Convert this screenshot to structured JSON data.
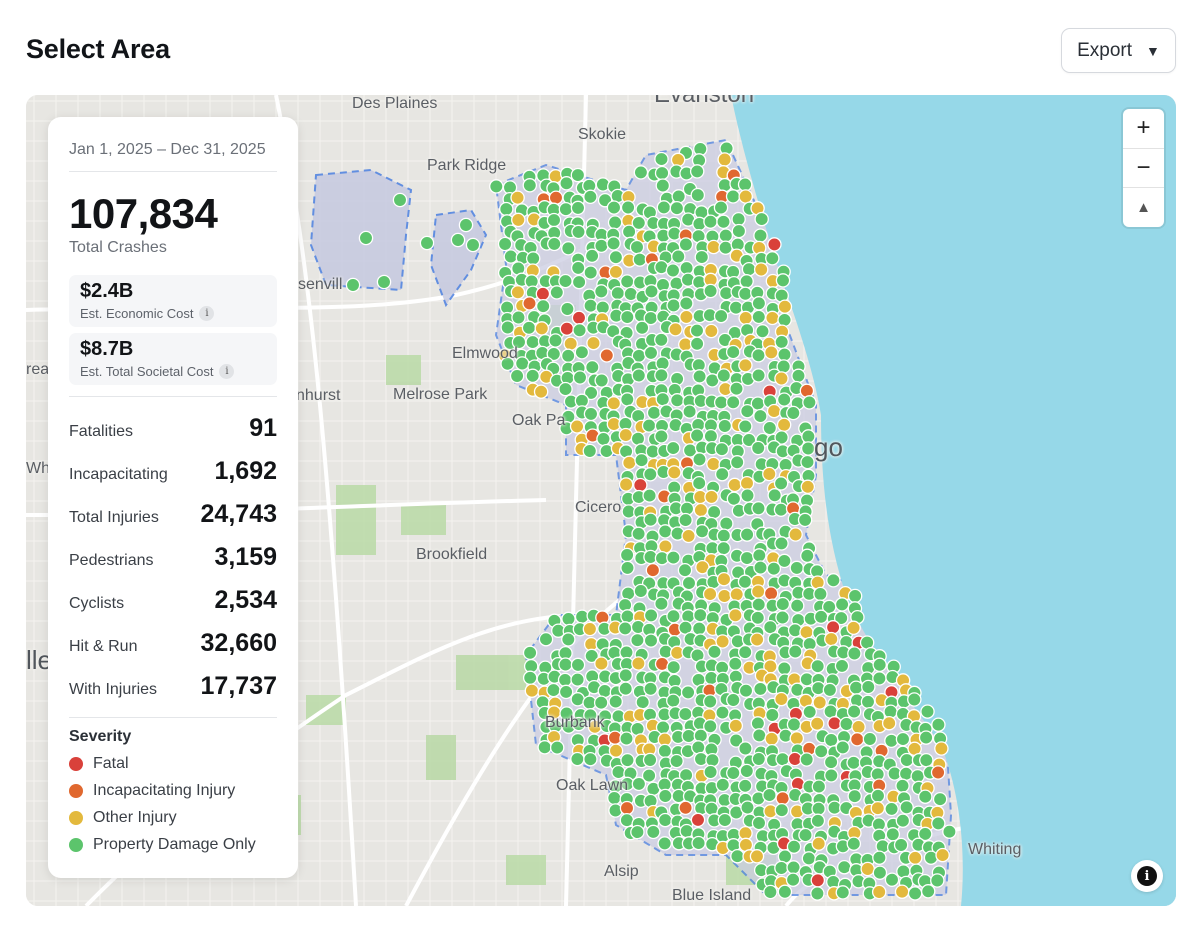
{
  "header": {
    "title": "Select Area",
    "export_label": "Export",
    "export_caret": "▼"
  },
  "map": {
    "labels": {
      "evanston": "Evanston",
      "des_plaines": "Des Plaines",
      "skokie": "Skokie",
      "park_ridge": "Park Ridge",
      "rosemont": "senvill",
      "elmwood": "Elmwood",
      "melrose_park": "Melrose Park",
      "elmhurst": "nhurst",
      "oak_park": "Oak Pa",
      "chicago": "go",
      "cicero": "Cicero",
      "brookfield": "Brookfield",
      "burbank": "Burbank",
      "oak_lawn": "Oak Lawn",
      "alsip": "Alsip",
      "blue_island": "Blue Island",
      "whiting": "Whiting",
      "west_edge_1": "Whe",
      "west_edge_2": "lle",
      "west_edge_3": "rea"
    },
    "zoom_in": "+",
    "zoom_out": "−",
    "reset_north": "▲",
    "info": "i",
    "colors": {
      "water": "#96d8e8",
      "land": "#e7e6e2",
      "park": "#b9d9a6",
      "area_outline": "#4a7fe0",
      "area_fill": "#c9cde3"
    }
  },
  "panel": {
    "date_range": "Jan 1, 2025 – Dec 31, 2025",
    "total_crashes": "107,834",
    "total_crashes_label": "Total Crashes",
    "economic_cost": "$2.4B",
    "economic_cost_label": "Est. Economic Cost",
    "societal_cost": "$8.7B",
    "societal_cost_label": "Est. Total Societal Cost",
    "info_glyph": "i",
    "stats": [
      {
        "label": "Fatalities",
        "value": "91"
      },
      {
        "label": "Incapacitating",
        "value": "1,692"
      },
      {
        "label": "Total Injuries",
        "value": "24,743"
      },
      {
        "label": "Pedestrians",
        "value": "3,159"
      },
      {
        "label": "Cyclists",
        "value": "2,534"
      },
      {
        "label": "Hit & Run",
        "value": "32,660"
      },
      {
        "label": "With Injuries",
        "value": "17,737"
      }
    ],
    "severity_title": "Severity",
    "severity": [
      {
        "label": "Fatal",
        "color": "#d9413a"
      },
      {
        "label": "Incapacitating Injury",
        "color": "#e0682f"
      },
      {
        "label": "Other Injury",
        "color": "#e3b93d"
      },
      {
        "label": "Property Damage Only",
        "color": "#5cc46c"
      }
    ]
  }
}
